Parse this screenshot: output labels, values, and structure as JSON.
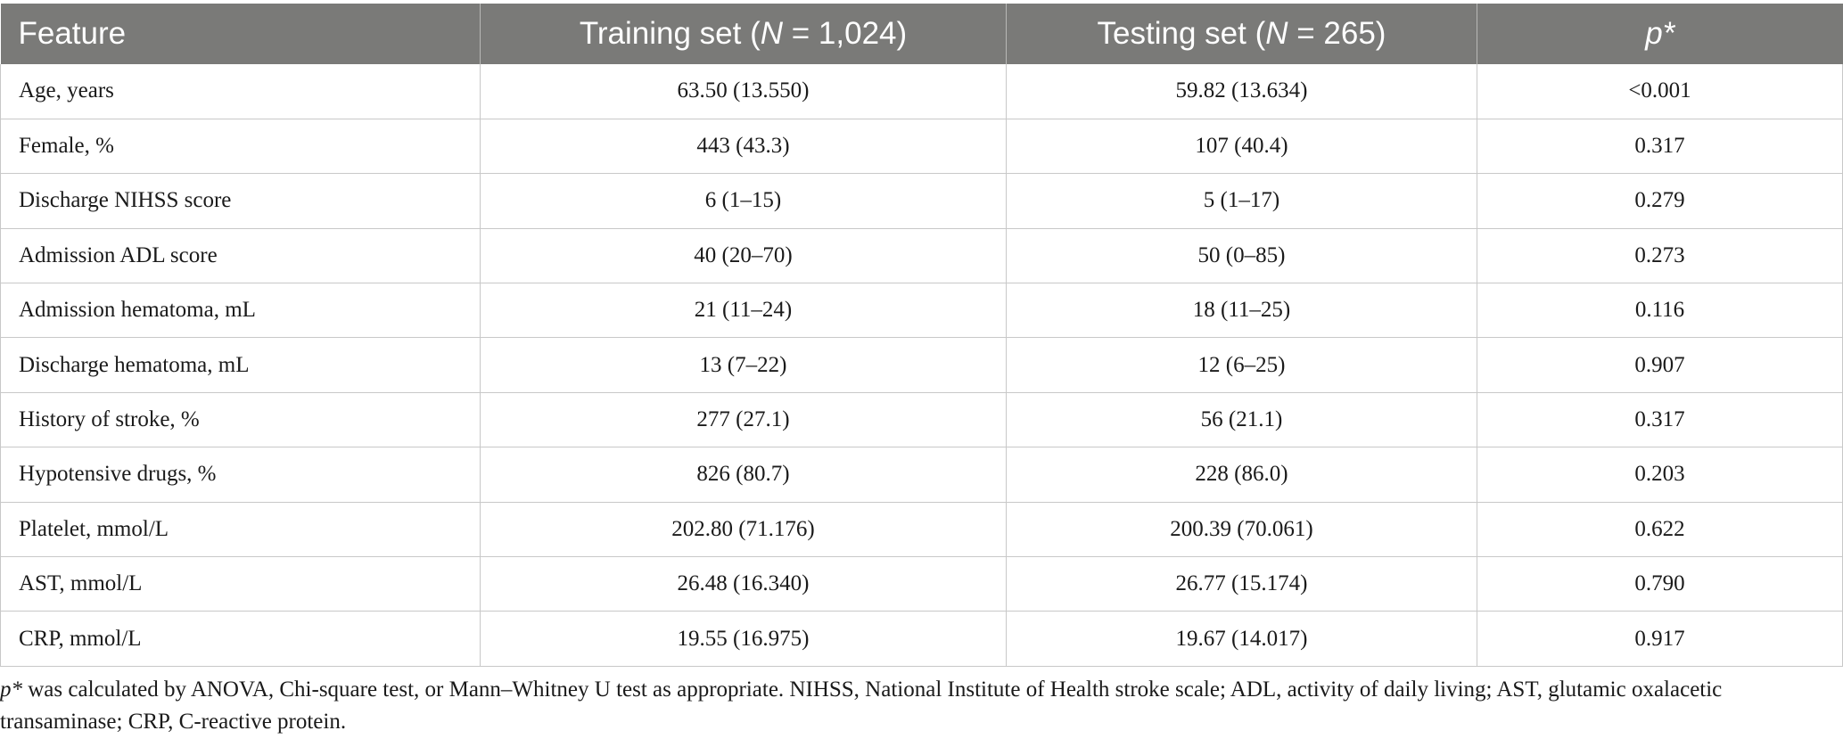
{
  "table": {
    "headers": [
      {
        "pre": "Feature",
        "italic": "",
        "post": ""
      },
      {
        "pre": "Training set (",
        "italic": "N",
        "post": " = 1,024)"
      },
      {
        "pre": "Testing set (",
        "italic": "N",
        "post": " = 265)"
      },
      {
        "pre": "",
        "italic": "p*",
        "post": ""
      }
    ],
    "rows": [
      [
        "Age, years",
        "63.50 (13.550)",
        "59.82 (13.634)",
        "<0.001"
      ],
      [
        "Female, %",
        "443 (43.3)",
        "107 (40.4)",
        "0.317"
      ],
      [
        "Discharge NIHSS score",
        "6 (1–15)",
        "5 (1–17)",
        "0.279"
      ],
      [
        "Admission ADL score",
        "40 (20–70)",
        "50 (0–85)",
        "0.273"
      ],
      [
        "Admission hematoma, mL",
        "21 (11–24)",
        "18 (11–25)",
        "0.116"
      ],
      [
        "Discharge hematoma, mL",
        "13 (7–22)",
        "12 (6–25)",
        "0.907"
      ],
      [
        "History of stroke, %",
        "277 (27.1)",
        "56 (21.1)",
        "0.317"
      ],
      [
        "Hypotensive drugs, %",
        "826 (80.7)",
        "228 (86.0)",
        "0.203"
      ],
      [
        "Platelet, mmol/L",
        "202.80 (71.176)",
        "200.39 (70.061)",
        "0.622"
      ],
      [
        "AST, mmol/L",
        "26.48 (16.340)",
        "26.77 (15.174)",
        "0.790"
      ],
      [
        "CRP, mmol/L",
        "19.55 (16.975)",
        "19.67 (14.017)",
        "0.917"
      ]
    ]
  },
  "footnote": {
    "italic": "p*",
    "text": " was calculated by ANOVA, Chi-square test, or Mann–Whitney U test as appropriate. NIHSS, National Institute of Health stroke scale; ADL, activity of daily living; AST, glutamic oxalacetic transaminase; CRP, C-reactive protein."
  }
}
